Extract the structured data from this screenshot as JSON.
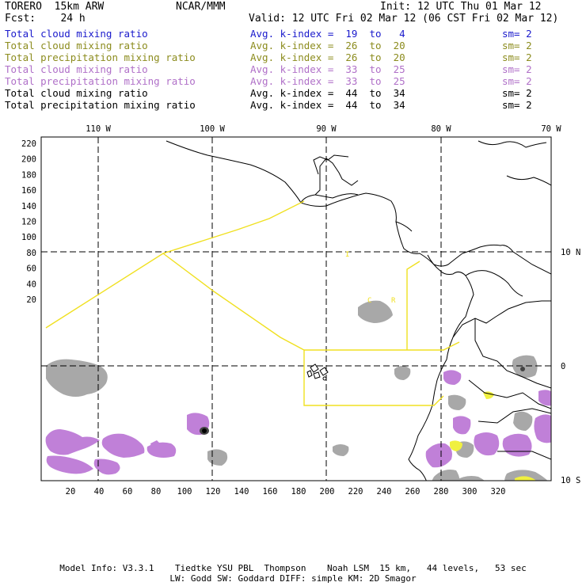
{
  "header": {
    "model": "TORERO  15km ARW",
    "org": "NCAR/MMM",
    "init": "Init: 12 UTC Thu 01 Mar 12",
    "fcst": "Fcst:    24 h",
    "valid": "Valid: 12 UTC Fri 02 Mar 12 (06 CST Fri 02 Mar 12)"
  },
  "colors": {
    "blue": "#1a1acc",
    "olive": "#8c8c1e",
    "violet": "#b070c8",
    "black": "#000000",
    "fill_violet": "#c080d8",
    "fill_yellow": "#f0f040",
    "fill_gray": "#a8a8a8",
    "boundary_yellow": "#f0e020"
  },
  "legend": [
    {
      "label": "Total cloud mixing ratio",
      "avg": "Avg. k-index =  19  to   4",
      "sm": "sm= 2",
      "color": "#1a1acc"
    },
    {
      "label": "Total cloud mixing ratio",
      "avg": "Avg. k-index =  26  to  20",
      "sm": "sm= 2",
      "color": "#8c8c1e"
    },
    {
      "label": "Total precipitation mixing ratio",
      "avg": "Avg. k-index =  26  to  20",
      "sm": "sm= 2",
      "color": "#8c8c1e"
    },
    {
      "label": "Total cloud mixing ratio",
      "avg": "Avg. k-index =  33  to  25",
      "sm": "sm= 2",
      "color": "#b070c8"
    },
    {
      "label": "Total precipitation mixing ratio",
      "avg": "Avg. k-index =  33  to  25",
      "sm": "sm= 2",
      "color": "#b070c8"
    },
    {
      "label": "Total cloud mixing ratio",
      "avg": "Avg. k-index =  44  to  34",
      "sm": "sm= 2",
      "color": "#000000"
    },
    {
      "label": "Total precipitation mixing ratio",
      "avg": "Avg. k-index =  44  to  34",
      "sm": "sm= 2",
      "color": "#000000"
    }
  ],
  "map": {
    "top_lon_labels": [
      "110 W",
      "100 W",
      "90 W",
      "80 W",
      "70 W"
    ],
    "right_lat_labels": [
      "10 N",
      "0",
      "10 S"
    ],
    "y_ticks": [
      "220",
      "200",
      "180",
      "160",
      "140",
      "120",
      "100",
      "80",
      "60",
      "40",
      "20"
    ],
    "x_ticks": [
      "20",
      "40",
      "60",
      "80",
      "100",
      "120",
      "140",
      "160",
      "180",
      "200",
      "220",
      "240",
      "260",
      "280",
      "300",
      "320"
    ],
    "annotations": [
      "I",
      "C",
      "R"
    ]
  },
  "footer": {
    "line1": "Model Info: V3.3.1    Tiedtke YSU PBL  Thompson    Noah LSM  15 km,   44 levels,   53 sec",
    "line2": "LW: Godd SW: Goddard DIFF: simple KM: 2D Smagor"
  }
}
